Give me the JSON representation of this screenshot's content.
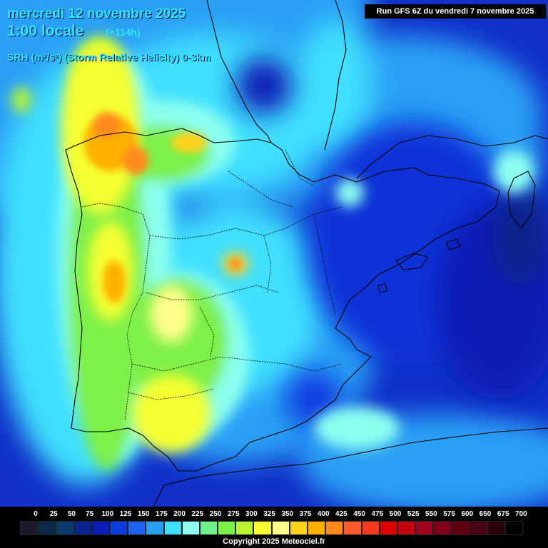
{
  "header": {
    "date_line": "mercredi 12 novembre 2025",
    "time_line": "1:00 locale",
    "lead_time": "(+114h)",
    "parameter": "SRH (m²/s²) (Storm Relative Helicity) 0-3km",
    "run_info": "Run GFS 6Z du vendredi 7 novembre 2025"
  },
  "legend": {
    "labels": [
      "0",
      "25",
      "50",
      "75",
      "100",
      "125",
      "150",
      "175",
      "200",
      "225",
      "250",
      "275",
      "300",
      "325",
      "350",
      "375",
      "400",
      "425",
      "450",
      "475",
      "500",
      "525",
      "550",
      "575",
      "600",
      "650",
      "675",
      "700"
    ],
    "colors": [
      "#1a1a2e",
      "#0b2a4a",
      "#0a3a6e",
      "#08238a",
      "#0a1fb5",
      "#0c3be0",
      "#1d64f0",
      "#2aa0f5",
      "#3fe0ff",
      "#8cfff0",
      "#6cf08a",
      "#7df04a",
      "#b8f530",
      "#f5ff30",
      "#ffff8a",
      "#ffd21a",
      "#ffb000",
      "#ff8a1a",
      "#ff5a2a",
      "#f53a1e",
      "#e00000",
      "#c00010",
      "#a00020",
      "#800018",
      "#600010",
      "#4a0010",
      "#2a0008",
      "#000000"
    ]
  },
  "copyright": "Copyright 2025 Meteociel.fr",
  "colors": {
    "sea_base": "#1030c8",
    "title_color": "#2ee6ff"
  }
}
